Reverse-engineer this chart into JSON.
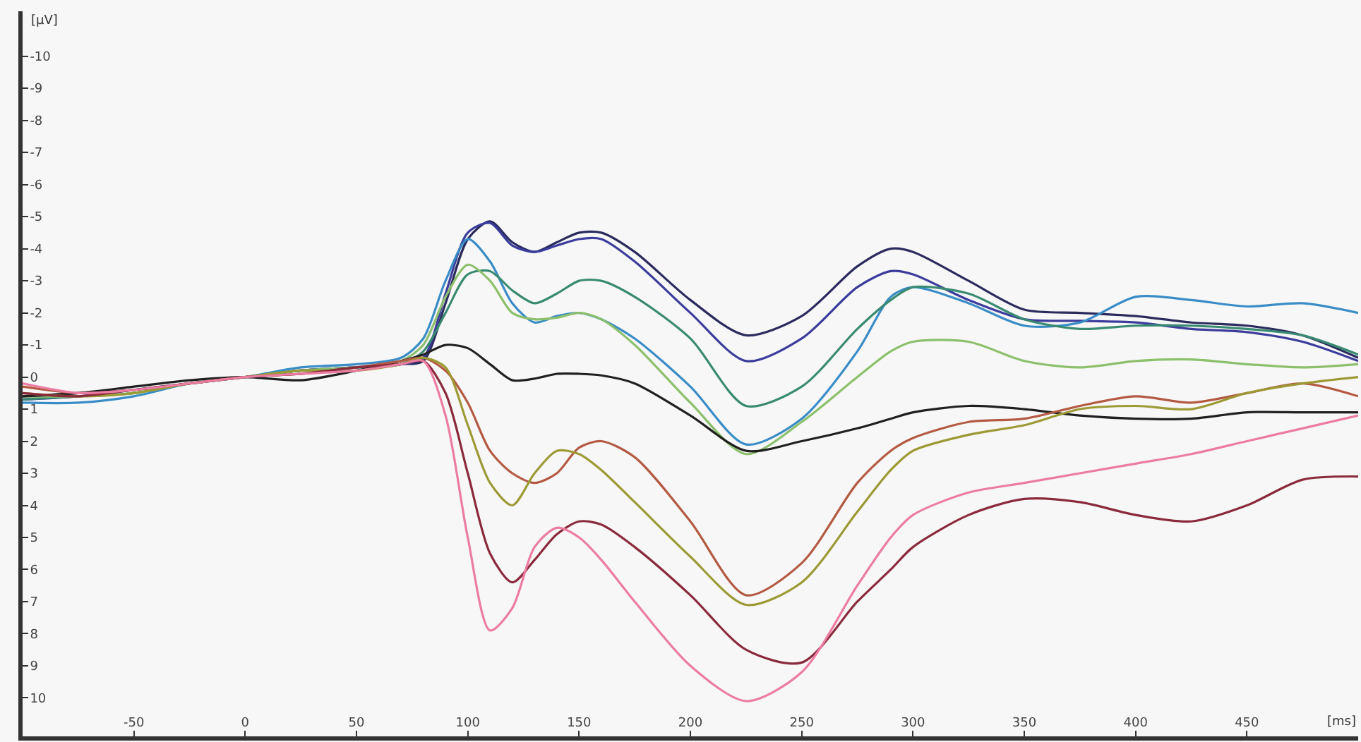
{
  "chart_data": {
    "type": "line",
    "xlabel": "[ms]",
    "ylabel": "[µV]",
    "x": [
      -100,
      -75,
      -50,
      -25,
      0,
      25,
      50,
      70,
      80,
      90,
      100,
      110,
      120,
      130,
      140,
      150,
      160,
      175,
      200,
      225,
      250,
      275,
      290,
      300,
      325,
      350,
      375,
      400,
      425,
      450,
      475,
      500
    ],
    "xlim": [
      -100,
      500
    ],
    "xticks": [
      -50,
      0,
      50,
      100,
      150,
      200,
      250,
      300,
      350,
      400,
      450
    ],
    "ylim": [
      11.2,
      -11.4
    ],
    "yticks": [
      -10,
      -9,
      -8,
      -7,
      -6,
      -5,
      -4,
      -3,
      -2,
      -1,
      0,
      1,
      2,
      3,
      4,
      5,
      6,
      7,
      8,
      9,
      10
    ],
    "marker": "none",
    "line_style": "solid",
    "series": [
      {
        "color": "#2b2b5e",
        "values": [
          0.6,
          0.5,
          0.4,
          0.2,
          0,
          -0.2,
          -0.3,
          -0.4,
          -0.5,
          -2.3,
          -4.3,
          -4.85,
          -4.2,
          -3.9,
          -4.2,
          -4.5,
          -4.5,
          -3.9,
          -2.4,
          -1.3,
          -1.9,
          -3.45,
          -4.0,
          -3.9,
          -3.0,
          -2.1,
          -2.0,
          -1.9,
          -1.7,
          -1.6,
          -1.3,
          -0.6
        ]
      },
      {
        "color": "#3c3c9c",
        "values": [
          0.7,
          0.6,
          0.4,
          0.2,
          0,
          -0.2,
          -0.3,
          -0.4,
          -0.6,
          -2.6,
          -4.5,
          -4.8,
          -4.1,
          -3.9,
          -4.1,
          -4.3,
          -4.3,
          -3.6,
          -2.0,
          -0.5,
          -1.2,
          -2.8,
          -3.3,
          -3.2,
          -2.4,
          -1.8,
          -1.75,
          -1.7,
          -1.5,
          -1.4,
          -1.1,
          -0.5
        ]
      },
      {
        "color": "#3a8cc6",
        "values": [
          0.8,
          0.8,
          0.6,
          0.2,
          0,
          -0.3,
          -0.4,
          -0.6,
          -1.2,
          -3.0,
          -4.3,
          -3.6,
          -2.3,
          -1.7,
          -1.9,
          -2.0,
          -1.8,
          -1.2,
          0.3,
          2.1,
          1.3,
          -0.8,
          -2.5,
          -2.8,
          -2.3,
          -1.6,
          -1.7,
          -2.5,
          -2.4,
          -2.2,
          -2.3,
          -2.0
        ]
      },
      {
        "color": "#3a8a72",
        "values": [
          0.7,
          0.6,
          0.5,
          0.2,
          0,
          -0.2,
          -0.3,
          -0.4,
          -0.8,
          -2.0,
          -3.2,
          -3.3,
          -2.7,
          -2.3,
          -2.6,
          -3.0,
          -3.0,
          -2.5,
          -1.2,
          0.9,
          0.3,
          -1.5,
          -2.4,
          -2.8,
          -2.6,
          -1.8,
          -1.5,
          -1.6,
          -1.6,
          -1.5,
          -1.3,
          -0.7
        ]
      },
      {
        "color": "#8cc06c",
        "values": [
          0.6,
          0.6,
          0.5,
          0.2,
          0,
          -0.2,
          -0.3,
          -0.5,
          -1.0,
          -2.5,
          -3.5,
          -3.0,
          -2.0,
          -1.8,
          -1.85,
          -2.0,
          -1.8,
          -1.0,
          0.8,
          2.4,
          1.4,
          0,
          -0.8,
          -1.1,
          -1.1,
          -0.5,
          -0.3,
          -0.5,
          -0.55,
          -0.4,
          -0.3,
          -0.4
        ]
      },
      {
        "color": "#202020",
        "values": [
          0.6,
          0.5,
          0.3,
          0.1,
          0,
          0.1,
          -0.2,
          -0.5,
          -0.7,
          -1.0,
          -0.9,
          -0.4,
          0.1,
          0.05,
          -0.1,
          -0.1,
          -0.05,
          0.2,
          1.2,
          2.3,
          2.0,
          1.6,
          1.3,
          1.1,
          0.9,
          1.0,
          1.2,
          1.3,
          1.3,
          1.1,
          1.1,
          1.1
        ]
      },
      {
        "color": "#b45a42",
        "values": [
          0.3,
          0.5,
          0.4,
          0.2,
          0,
          -0.1,
          -0.3,
          -0.5,
          -0.6,
          -0.2,
          0.8,
          2.3,
          3.0,
          3.3,
          3.0,
          2.2,
          2.0,
          2.5,
          4.5,
          6.8,
          5.8,
          3.3,
          2.3,
          1.9,
          1.4,
          1.3,
          0.9,
          0.6,
          0.8,
          0.5,
          0.2,
          0.6
        ]
      },
      {
        "color": "#9c9a34",
        "values": [
          0.5,
          0.6,
          0.5,
          0.2,
          0,
          -0.2,
          -0.2,
          -0.4,
          -0.6,
          -0.3,
          1.5,
          3.3,
          4.0,
          3.0,
          2.3,
          2.4,
          2.9,
          3.9,
          5.6,
          7.1,
          6.4,
          4.2,
          2.9,
          2.3,
          1.8,
          1.5,
          1.0,
          0.9,
          1.0,
          0.5,
          0.2,
          0.0
        ]
      },
      {
        "color": "#8a2a3c",
        "values": [
          0.5,
          0.6,
          0.4,
          0.2,
          0,
          -0.1,
          -0.3,
          -0.4,
          -0.5,
          0.5,
          3.0,
          5.5,
          6.4,
          5.7,
          4.9,
          4.5,
          4.6,
          5.3,
          6.8,
          8.5,
          8.9,
          7.0,
          6.0,
          5.3,
          4.3,
          3.8,
          3.9,
          4.3,
          4.5,
          4.0,
          3.2,
          3.1
        ]
      },
      {
        "color": "#ec7ca2",
        "values": [
          0.2,
          0.5,
          0.4,
          0.2,
          0,
          -0.1,
          -0.2,
          -0.4,
          -0.5,
          1.2,
          5.0,
          7.9,
          7.2,
          5.3,
          4.7,
          5.0,
          5.7,
          7.0,
          9.0,
          10.1,
          9.2,
          6.5,
          5.0,
          4.3,
          3.6,
          3.3,
          3.0,
          2.7,
          2.4,
          2.0,
          1.6,
          1.2
        ]
      }
    ]
  }
}
